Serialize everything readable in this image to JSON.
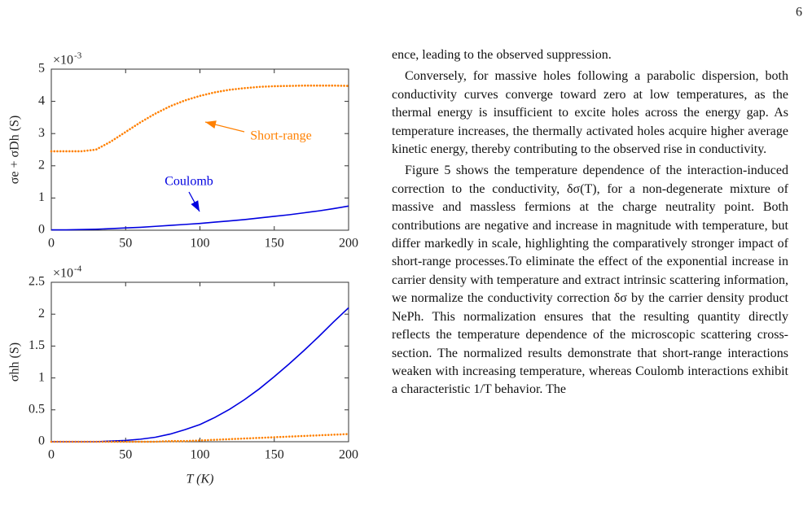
{
  "page_number": "6",
  "chart_data": [
    {
      "type": "line",
      "ylabel": "σe + σDh (S)",
      "y_multiplier": "×10",
      "y_exponent": "-3",
      "xlim": [
        0,
        200
      ],
      "xticks": [
        0,
        50,
        100,
        150,
        200
      ],
      "ylim": [
        0,
        5
      ],
      "yticks": [
        0,
        1,
        2,
        3,
        4,
        5
      ],
      "x": [
        0,
        10,
        20,
        30,
        40,
        50,
        60,
        70,
        80,
        90,
        100,
        110,
        120,
        130,
        140,
        150,
        160,
        170,
        180,
        190,
        200
      ],
      "series": [
        {
          "name": "Short-range",
          "color": "#ff8000",
          "style": "dotted",
          "values": [
            2.45,
            2.45,
            2.45,
            2.5,
            2.75,
            3.05,
            3.35,
            3.62,
            3.85,
            4.03,
            4.17,
            4.28,
            4.36,
            4.41,
            4.45,
            4.47,
            4.48,
            4.49,
            4.49,
            4.49,
            4.48
          ]
        },
        {
          "name": "Coulomb",
          "color": "#0000e0",
          "style": "solid",
          "values": [
            0.01,
            0.01,
            0.02,
            0.03,
            0.05,
            0.07,
            0.09,
            0.12,
            0.15,
            0.18,
            0.21,
            0.25,
            0.29,
            0.33,
            0.38,
            0.43,
            0.48,
            0.54,
            0.6,
            0.67,
            0.75
          ]
        }
      ]
    },
    {
      "type": "line",
      "ylabel": "σhh (S)",
      "xlabel": "T (K)",
      "y_multiplier": "×10",
      "y_exponent": "-4",
      "xlim": [
        0,
        200
      ],
      "xticks": [
        0,
        50,
        100,
        150,
        200
      ],
      "ylim": [
        0,
        2.5
      ],
      "yticks": [
        0,
        0.5,
        1,
        1.5,
        2,
        2.5
      ],
      "x": [
        0,
        10,
        20,
        30,
        40,
        50,
        60,
        70,
        80,
        90,
        100,
        110,
        120,
        130,
        140,
        150,
        160,
        170,
        180,
        190,
        200
      ],
      "series": [
        {
          "color": "#0000e0",
          "style": "solid",
          "values": [
            0,
            0,
            0,
            0,
            0.01,
            0.02,
            0.04,
            0.07,
            0.12,
            0.19,
            0.27,
            0.38,
            0.51,
            0.66,
            0.83,
            1.02,
            1.22,
            1.43,
            1.65,
            1.88,
            2.1
          ]
        },
        {
          "color": "#ff8000",
          "style": "dotted",
          "values": [
            0,
            0,
            0,
            0,
            0,
            0,
            0,
            0,
            0.01,
            0.01,
            0.02,
            0.03,
            0.04,
            0.05,
            0.06,
            0.07,
            0.08,
            0.09,
            0.1,
            0.11,
            0.12
          ]
        }
      ]
    }
  ],
  "text": {
    "paragraphs": [
      "ence, leading to the observed suppression.",
      "Conversely, for massive holes following a parabolic dispersion, both conductivity curves converge toward zero at low temperatures, as the thermal energy is insufficient to excite holes across the energy gap. As temperature increases, the thermally activated holes acquire higher average kinetic energy, thereby contributing to the observed rise in conductivity.",
      "Figure 5 shows the temperature dependence of the interaction-induced correction to the conductivity, δσ(T), for a non-degenerate mixture of massive and massless fermions at the charge neutrality point. Both contributions are negative and increase in magnitude with temperature, but differ markedly in scale, highlighting the comparatively stronger impact of short-range processes.To eliminate the effect of the exponential increase in carrier density with temperature and extract intrinsic scattering information, we normalize the conductivity correction δσ by the carrier density product NePh. This normalization ensures that the resulting quantity directly reflects the temperature dependence of the microscopic scattering cross-section. The normalized results demonstrate that short-range interactions weaken with increasing temperature, whereas Coulomb interactions exhibit a characteristic 1/T behavior. The"
    ]
  }
}
